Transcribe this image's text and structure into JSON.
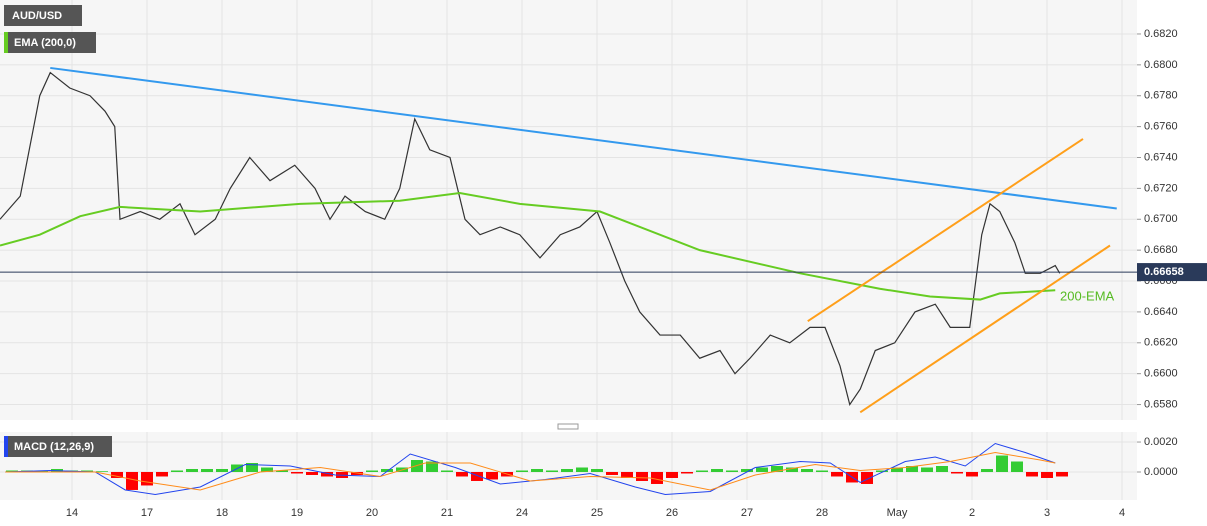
{
  "chart_data": [
    {
      "type": "line",
      "title": "AUD/USD",
      "legend": "EMA (200,0)",
      "annotation": "200-EMA",
      "current_price": 0.66658,
      "ylim": [
        0.657,
        0.6842
      ],
      "xlim": [
        -0.96,
        14.2
      ],
      "yticks": [
        {
          "value": 0.658,
          "label": "0.6580"
        },
        {
          "value": 0.66,
          "label": "0.6600"
        },
        {
          "value": 0.662,
          "label": "0.6620"
        },
        {
          "value": 0.664,
          "label": "0.6640"
        },
        {
          "value": 0.666,
          "label": "0.6660"
        },
        {
          "value": 0.668,
          "label": "0.6680"
        },
        {
          "value": 0.67,
          "label": "0.6700"
        },
        {
          "value": 0.672,
          "label": "0.6720"
        },
        {
          "value": 0.674,
          "label": "0.6740"
        },
        {
          "value": 0.676,
          "label": "0.6760"
        },
        {
          "value": 0.678,
          "label": "0.6780"
        },
        {
          "value": 0.68,
          "label": "0.6800"
        },
        {
          "value": 0.682,
          "label": "0.6820"
        }
      ],
      "grid": true,
      "series": [
        {
          "name": "AUD/USD",
          "color": "#333333",
          "x": [
            -0.96,
            -0.69,
            -0.43,
            -0.29,
            -0.03,
            0.24,
            0.44,
            0.57,
            0.64,
            0.91,
            1.17,
            1.44,
            1.64,
            1.91,
            2.11,
            2.37,
            2.64,
            2.97,
            3.24,
            3.44,
            3.64,
            3.91,
            4.17,
            4.37,
            4.57,
            4.77,
            5.04,
            5.24,
            5.44,
            5.71,
            5.97,
            6.24,
            6.51,
            6.77,
            7.0,
            7.17,
            7.37,
            7.57,
            7.84,
            8.11,
            8.37,
            8.64,
            8.84,
            9.04,
            9.31,
            9.57,
            9.84,
            10.04,
            10.24,
            10.37,
            10.51,
            10.71,
            10.97,
            11.24,
            11.51,
            11.71,
            11.97,
            12.13,
            12.24,
            12.37,
            12.57,
            12.71,
            12.91,
            13.11,
            13.17
          ],
          "values": [
            0.67,
            0.6715,
            0.678,
            0.6795,
            0.6785,
            0.678,
            0.677,
            0.676,
            0.67,
            0.6705,
            0.67,
            0.671,
            0.669,
            0.67,
            0.672,
            0.674,
            0.6725,
            0.6735,
            0.672,
            0.67,
            0.6715,
            0.6705,
            0.67,
            0.672,
            0.6765,
            0.6745,
            0.674,
            0.67,
            0.669,
            0.6695,
            0.669,
            0.6675,
            0.669,
            0.6695,
            0.6705,
            0.6685,
            0.666,
            0.664,
            0.6625,
            0.6625,
            0.661,
            0.6615,
            0.66,
            0.661,
            0.6625,
            0.662,
            0.663,
            0.663,
            0.6605,
            0.658,
            0.659,
            0.6615,
            0.662,
            0.664,
            0.6645,
            0.663,
            0.663,
            0.669,
            0.671,
            0.6705,
            0.6685,
            0.6665,
            0.6665,
            0.667,
            0.6665
          ]
        },
        {
          "name": "EMA (200,0)",
          "color": "#66cc22",
          "x": [
            -0.96,
            -0.43,
            0.11,
            0.64,
            1.71,
            3.04,
            4.37,
            5.17,
            5.97,
            7.04,
            8.37,
            9.71,
            10.77,
            11.44,
            12.11,
            12.37,
            13.11
          ],
          "values": [
            0.6683,
            0.669,
            0.6702,
            0.6708,
            0.6705,
            0.671,
            0.6712,
            0.6717,
            0.671,
            0.6705,
            0.668,
            0.6665,
            0.6655,
            0.665,
            0.6648,
            0.6652,
            0.6654
          ]
        }
      ],
      "trendlines": [
        {
          "color": "#3399ee",
          "x": [
            -0.29,
            13.93
          ],
          "values": [
            0.6798,
            0.6707
          ]
        },
        {
          "color": "#ff9f1a",
          "x": [
            9.81,
            13.48
          ],
          "values": [
            0.6634,
            0.6752
          ]
        },
        {
          "color": "#ff9f1a",
          "x": [
            10.51,
            13.84
          ],
          "values": [
            0.6575,
            0.6683
          ]
        }
      ]
    },
    {
      "type": "macd",
      "title": "MACD (12,26,9)",
      "ylim": [
        -0.00187,
        0.00267
      ],
      "xlim": [
        -0.96,
        14.2
      ],
      "yticks": [
        {
          "value": 0,
          "label": "0.0000"
        },
        {
          "value": 0.002,
          "label": "0.0020"
        }
      ],
      "xticks": [
        {
          "value": 0,
          "label": "14"
        },
        {
          "value": 1,
          "label": "17"
        },
        {
          "value": 2,
          "label": "18"
        },
        {
          "value": 3,
          "label": "19"
        },
        {
          "value": 4,
          "label": "20"
        },
        {
          "value": 5,
          "label": "21"
        },
        {
          "value": 6,
          "label": "24"
        },
        {
          "value": 7,
          "label": "25"
        },
        {
          "value": 8,
          "label": "26"
        },
        {
          "value": 9,
          "label": "27"
        },
        {
          "value": 10,
          "label": "28"
        },
        {
          "value": 11,
          "label": "May"
        },
        {
          "value": 12,
          "label": "2"
        },
        {
          "value": 13,
          "label": "3"
        },
        {
          "value": 14,
          "label": "4"
        }
      ],
      "up_color": "#33cc33",
      "down_color": "#ff0000",
      "histogram": {
        "x": [
          -0.8,
          -0.6,
          -0.4,
          -0.2,
          0,
          0.2,
          0.4,
          0.6,
          0.8,
          1,
          1.2,
          1.4,
          1.6,
          1.8,
          2,
          2.2,
          2.4,
          2.6,
          2.8,
          3,
          3.2,
          3.4,
          3.6,
          3.8,
          4,
          4.2,
          4.4,
          4.6,
          4.8,
          5,
          5.2,
          5.4,
          5.6,
          5.8,
          6,
          6.2,
          6.4,
          6.6,
          6.8,
          7,
          7.2,
          7.4,
          7.6,
          7.8,
          8,
          8.2,
          8.4,
          8.6,
          8.8,
          9,
          9.2,
          9.4,
          9.6,
          9.8,
          10,
          10.2,
          10.4,
          10.6,
          10.8,
          11,
          11.2,
          11.4,
          11.6,
          11.8,
          12,
          12.2,
          12.4,
          12.6,
          12.8,
          13,
          13.2
        ],
        "values": [
          0.0001,
          0.0001,
          0.0001,
          0.0002,
          0.0001,
          0.0001,
          5e-05,
          -0.0004,
          -0.0012,
          -0.0009,
          -0.0003,
          0.0001,
          0.0002,
          0.0002,
          0.0002,
          0.0005,
          0.0006,
          0.0003,
          0.0001,
          -0.0001,
          -0.0002,
          -0.0003,
          -0.0004,
          -0.0002,
          0.0001,
          0.0002,
          0.0003,
          0.0008,
          0.0007,
          0.0001,
          -0.0003,
          -0.0006,
          -0.0005,
          -0.0003,
          0.0001,
          0.0002,
          0.0001,
          0.0002,
          0.0003,
          0.0002,
          -0.0002,
          -0.0004,
          -0.0006,
          -0.0008,
          -0.0004,
          -0.0001,
          0.0001,
          0.0002,
          0.0001,
          0.0002,
          0.0003,
          0.0004,
          0.0003,
          0.0002,
          0.0001,
          -0.0003,
          -0.0007,
          -0.0008,
          0.0001,
          0.0003,
          0.0004,
          0.0003,
          0.0004,
          -0.0001,
          -0.0003,
          0.0002,
          0.0011,
          0.0007,
          -0.0003,
          -0.0004,
          -0.0003
        ]
      },
      "series": [
        {
          "color": "#2244ee",
          "x": [
            -0.89,
            -0.29,
            0.31,
            0.71,
            1.11,
            1.71,
            2.31,
            2.91,
            3.51,
            4.11,
            4.51,
            5.11,
            5.71,
            6.31,
            6.91,
            7.51,
            7.91,
            8.51,
            9.11,
            9.71,
            10.11,
            10.51,
            11.11,
            11.51,
            11.91,
            12.31,
            12.71,
            13.11
          ],
          "values": [
            0,
            0.0001,
            0,
            -0.0012,
            -0.0015,
            -0.001,
            0.0005,
            0.0004,
            -0.0002,
            -0.0003,
            0.0012,
            0.0003,
            -0.0008,
            -0.0005,
            -0.0001,
            -0.001,
            -0.0015,
            -0.0013,
            0.0003,
            0.0007,
            0.0006,
            -0.0007,
            0.0007,
            0.001,
            0.0004,
            0.0019,
            0.0013,
            0.0006
          ]
        },
        {
          "color": "#ff8c1a",
          "x": [
            -0.89,
            0.31,
            0.91,
            1.71,
            2.51,
            3.31,
            4.11,
            4.71,
            5.31,
            6.11,
            6.91,
            7.71,
            8.51,
            9.11,
            9.91,
            10.51,
            11.11,
            11.71,
            12.31,
            12.91,
            13.11
          ],
          "values": [
            0,
            0,
            -0.0006,
            -0.0012,
            0,
            0.0003,
            -0.0003,
            0.0006,
            0.0006,
            -0.0006,
            -0.0003,
            -0.0004,
            -0.0012,
            -0.0002,
            0.0005,
            0.0001,
            0.0003,
            0.0007,
            0.0013,
            0.0008,
            0.0006
          ]
        }
      ]
    }
  ]
}
